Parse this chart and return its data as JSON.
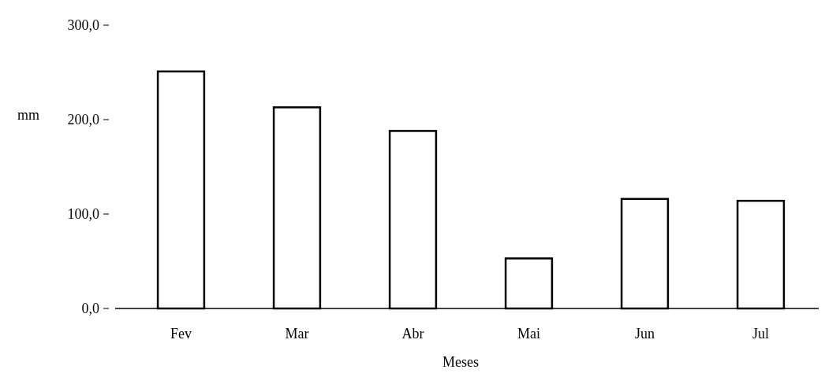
{
  "chart_data": {
    "type": "bar",
    "xlabel": "Meses",
    "ylabel": "mm",
    "categories": [
      "Fev",
      "Mar",
      "Abr",
      "Mai",
      "Jun",
      "Jul"
    ],
    "values": [
      251,
      213,
      188,
      53,
      116,
      114
    ],
    "color": "#ffffff",
    "ylim": [
      0,
      300
    ],
    "yticks": [
      {
        "value": 0,
        "label": "0,0"
      },
      {
        "value": 100,
        "label": "100,0"
      },
      {
        "value": 200,
        "label": "200,0"
      },
      {
        "value": 300,
        "label": "300,0"
      }
    ]
  }
}
